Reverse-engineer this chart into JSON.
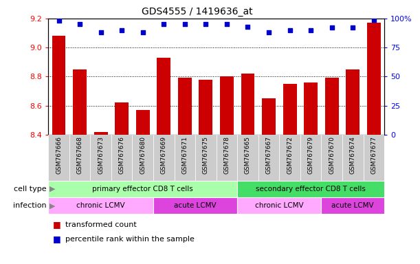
{
  "title": "GDS4555 / 1419636_at",
  "samples": [
    "GSM767666",
    "GSM767668",
    "GSM767673",
    "GSM767676",
    "GSM767680",
    "GSM767669",
    "GSM767671",
    "GSM767675",
    "GSM767678",
    "GSM767665",
    "GSM767667",
    "GSM767672",
    "GSM767679",
    "GSM767670",
    "GSM767674",
    "GSM767677"
  ],
  "transformed_count": [
    9.08,
    8.85,
    8.42,
    8.62,
    8.57,
    8.93,
    8.79,
    8.78,
    8.8,
    8.82,
    8.65,
    8.75,
    8.76,
    8.79,
    8.85,
    9.17
  ],
  "percentile_rank": [
    98,
    95,
    88,
    90,
    88,
    95,
    95,
    95,
    95,
    93,
    88,
    90,
    90,
    92,
    92,
    99
  ],
  "ylim_left": [
    8.4,
    9.2
  ],
  "ylim_right": [
    0,
    100
  ],
  "yticks_left": [
    8.4,
    8.6,
    8.8,
    9.0,
    9.2
  ],
  "yticks_right": [
    0,
    25,
    50,
    75,
    100
  ],
  "bar_color": "#cc0000",
  "dot_color": "#0000cc",
  "bar_bottom": 8.4,
  "cell_type_groups": [
    {
      "label": "primary effector CD8 T cells",
      "start": 0,
      "end": 8,
      "color": "#aaffaa"
    },
    {
      "label": "secondary effector CD8 T cells",
      "start": 9,
      "end": 15,
      "color": "#44dd66"
    }
  ],
  "infection_groups": [
    {
      "label": "chronic LCMV",
      "start": 0,
      "end": 4,
      "color": "#ffaaff"
    },
    {
      "label": "acute LCMV",
      "start": 5,
      "end": 8,
      "color": "#dd44dd"
    },
    {
      "label": "chronic LCMV",
      "start": 9,
      "end": 12,
      "color": "#ffaaff"
    },
    {
      "label": "acute LCMV",
      "start": 13,
      "end": 15,
      "color": "#dd44dd"
    }
  ],
  "legend_items": [
    {
      "label": "transformed count",
      "color": "#cc0000"
    },
    {
      "label": "percentile rank within the sample",
      "color": "#0000cc"
    }
  ],
  "background_color": "#ffffff",
  "label_area_color": "#cccccc",
  "grid_yticks": [
    8.6,
    8.8,
    9.0
  ],
  "row_label_color": "#888888",
  "arrow_color": "#888888"
}
